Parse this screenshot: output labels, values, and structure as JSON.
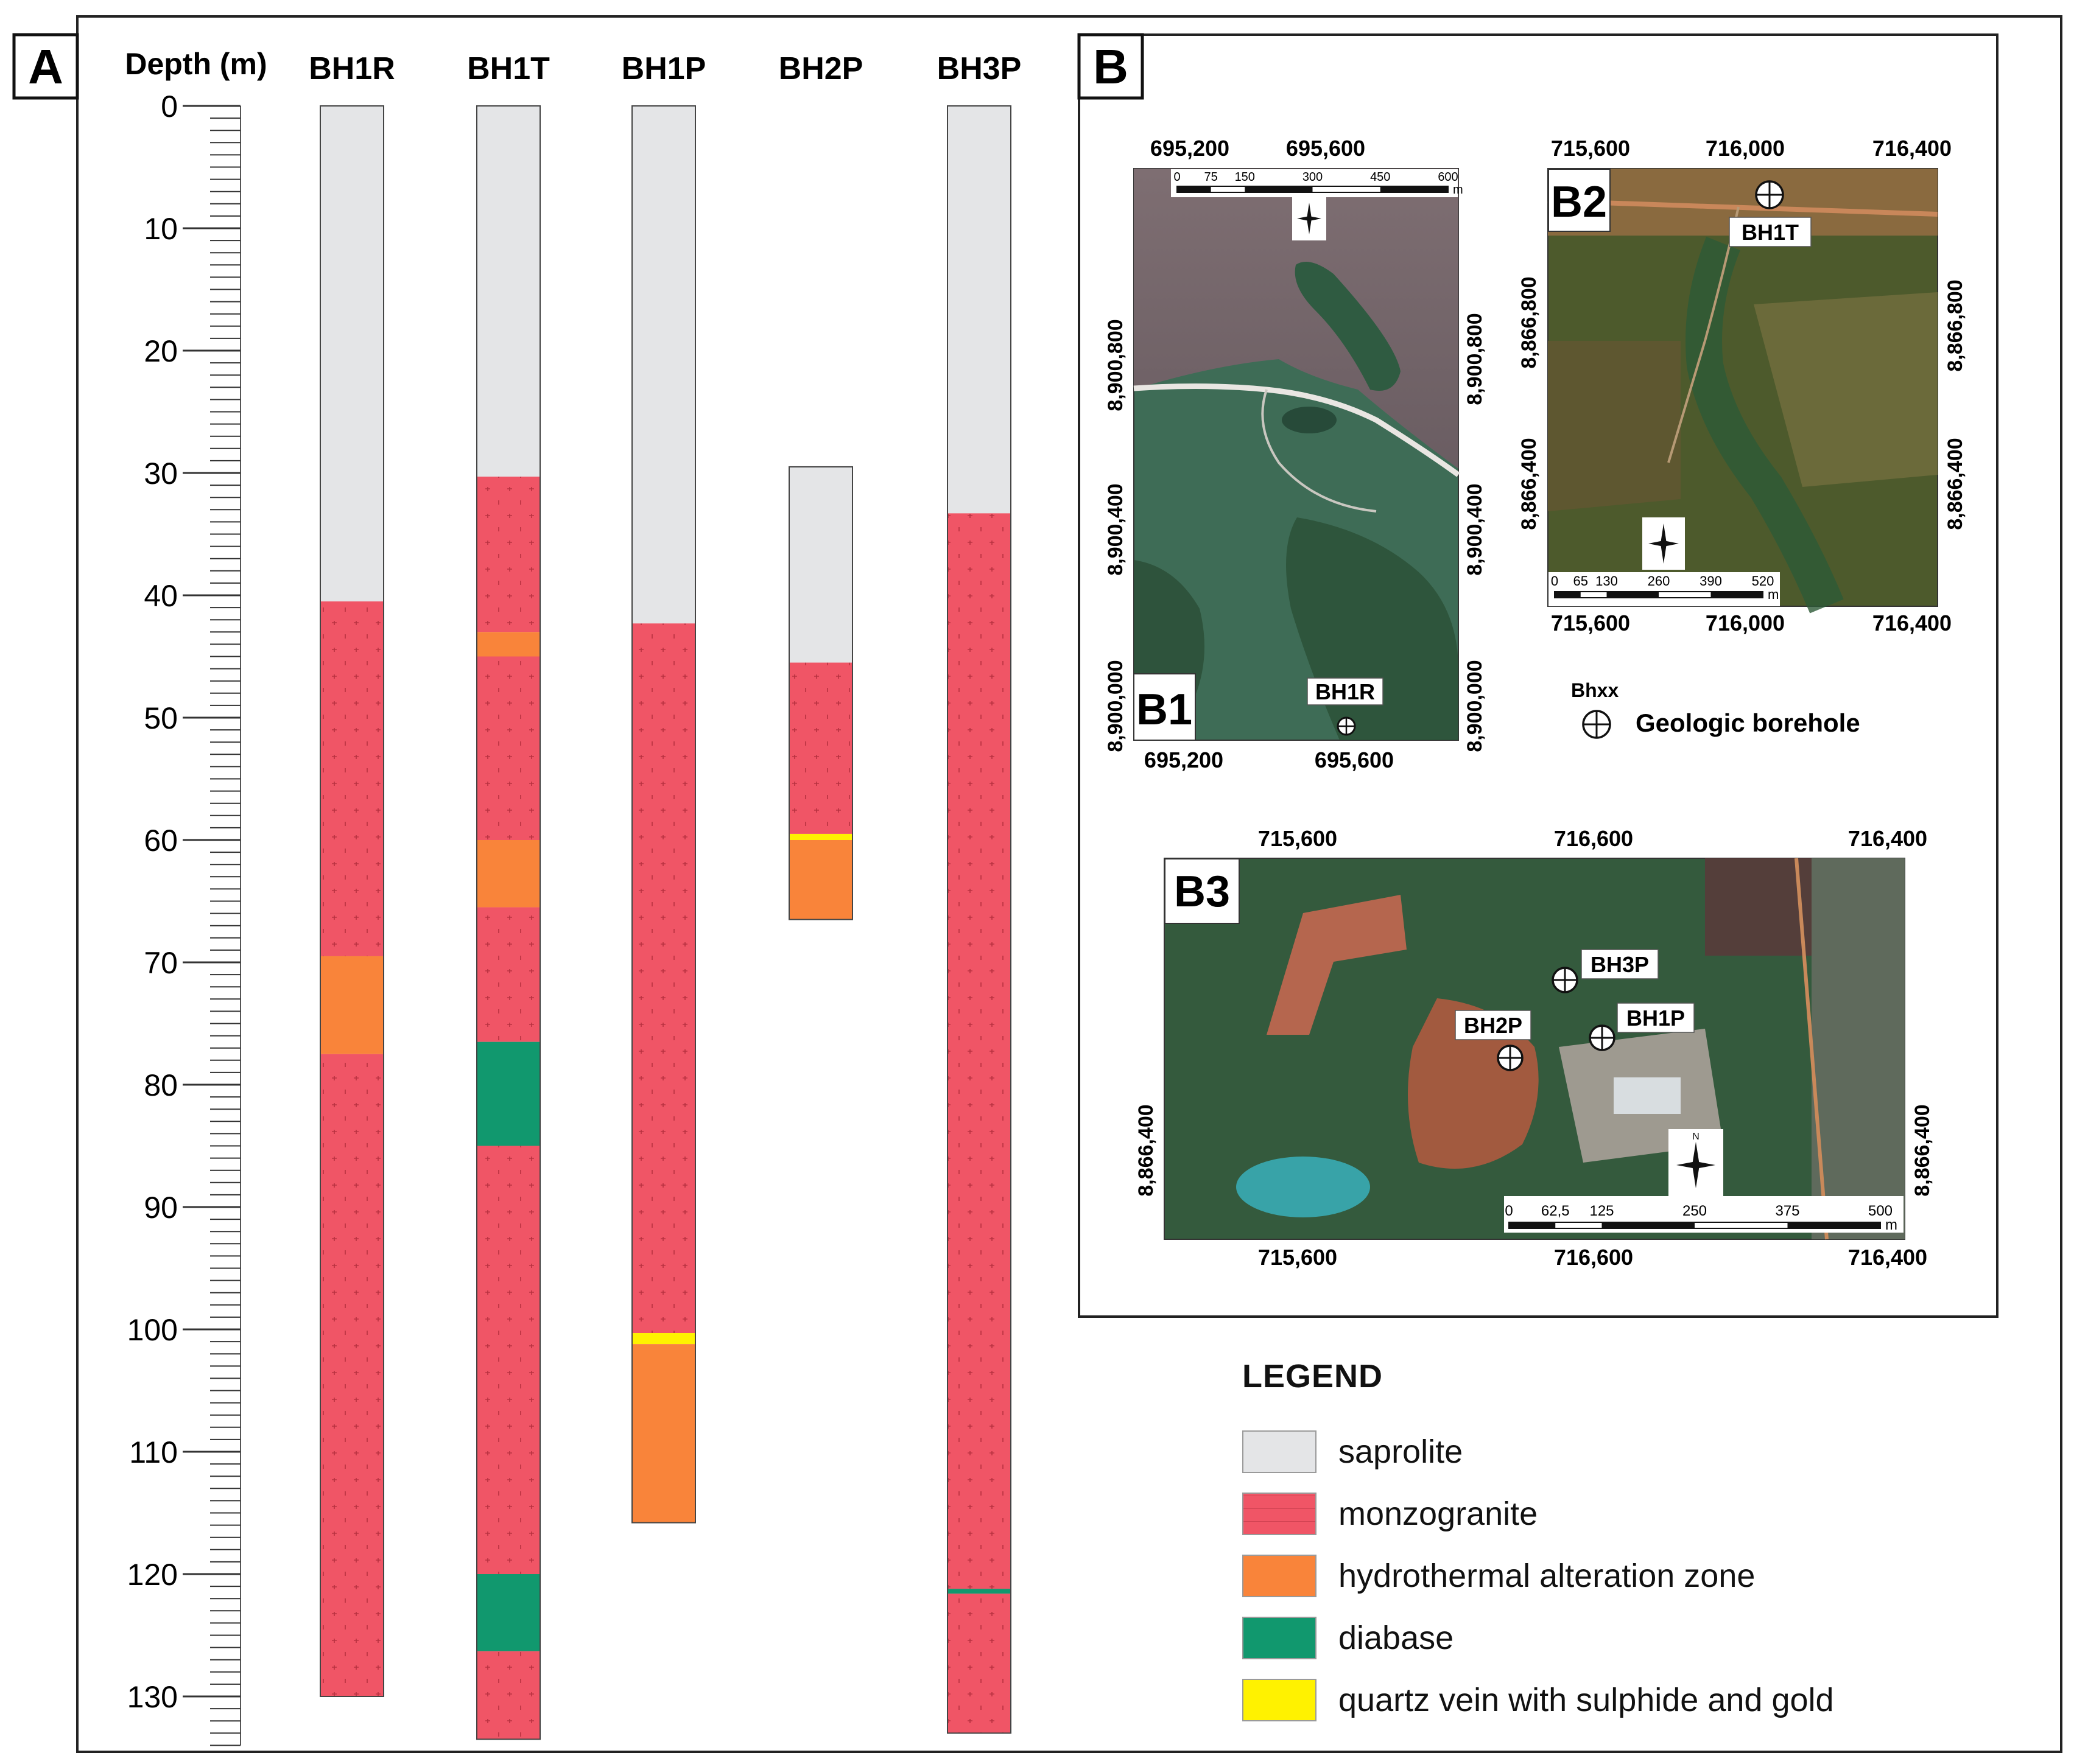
{
  "panel_a": {
    "label": "A",
    "depth_header": "Depth (m)",
    "depth_ticks": [
      "0",
      "10",
      "20",
      "30",
      "40",
      "50",
      "60",
      "70",
      "80",
      "90",
      "100",
      "110",
      "120",
      "130"
    ],
    "depth_max": 134,
    "boreholes": [
      {
        "name": "BH1R",
        "segments": [
          {
            "from": 0,
            "to": 40.5,
            "unit": "saprolite"
          },
          {
            "from": 40.5,
            "to": 69.5,
            "unit": "monzogranite"
          },
          {
            "from": 69.5,
            "to": 77.5,
            "unit": "hydrothermal"
          },
          {
            "from": 77.5,
            "to": 130,
            "unit": "monzogranite"
          }
        ]
      },
      {
        "name": "BH1T",
        "segments": [
          {
            "from": 0,
            "to": 30.3,
            "unit": "saprolite"
          },
          {
            "from": 30.3,
            "to": 43,
            "unit": "monzogranite"
          },
          {
            "from": 43,
            "to": 45,
            "unit": "hydrothermal"
          },
          {
            "from": 45,
            "to": 60,
            "unit": "monzogranite"
          },
          {
            "from": 60,
            "to": 65.5,
            "unit": "hydrothermal"
          },
          {
            "from": 65.5,
            "to": 76.5,
            "unit": "monzogranite"
          },
          {
            "from": 76.5,
            "to": 85,
            "unit": "diabase"
          },
          {
            "from": 85,
            "to": 120,
            "unit": "monzogranite"
          },
          {
            "from": 120,
            "to": 126.3,
            "unit": "diabase"
          },
          {
            "from": 126.3,
            "to": 133.5,
            "unit": "monzogranite"
          }
        ]
      },
      {
        "name": "BH1P",
        "segments": [
          {
            "from": 0,
            "to": 42.3,
            "unit": "saprolite"
          },
          {
            "from": 42.3,
            "to": 100.3,
            "unit": "monzogranite"
          },
          {
            "from": 100.3,
            "to": 101.2,
            "unit": "quartz"
          },
          {
            "from": 101.2,
            "to": 115.8,
            "unit": "hydrothermal"
          }
        ]
      },
      {
        "name": "BH2P",
        "segments": [
          {
            "from": 29.5,
            "to": 45.5,
            "unit": "saprolite"
          },
          {
            "from": 45.5,
            "to": 59.5,
            "unit": "monzogranite"
          },
          {
            "from": 59.5,
            "to": 60.0,
            "unit": "quartz"
          },
          {
            "from": 60.0,
            "to": 66.5,
            "unit": "hydrothermal"
          }
        ]
      },
      {
        "name": "BH3P",
        "segments": [
          {
            "from": 0,
            "to": 33.3,
            "unit": "saprolite"
          },
          {
            "from": 33.3,
            "to": 121.2,
            "unit": "monzogranite"
          },
          {
            "from": 121.2,
            "to": 121.6,
            "unit": "diabase"
          },
          {
            "from": 121.6,
            "to": 133,
            "unit": "monzogranite"
          }
        ]
      }
    ]
  },
  "colors": {
    "saprolite": "#e4e5e7",
    "monzogranite": "#f05566",
    "hydrothermal": "#f9843a",
    "diabase": "#11986e",
    "quartz": "#fff200"
  },
  "panel_b": {
    "label": "B",
    "b1": {
      "label": "B1",
      "top_ticks": [
        "695,200",
        "695,600"
      ],
      "bottom_ticks": [
        "695,200",
        "695,600"
      ],
      "left_ticks": [
        "8,900,800",
        "8,900,400",
        "8,900,000"
      ],
      "right_ticks": [
        "8,900,800",
        "8,900,400",
        "8,900,000"
      ],
      "scale_ticks": [
        "0",
        "75",
        "150",
        "300",
        "450",
        "600"
      ],
      "scale_unit": "m",
      "boreholes": [
        "BH1R"
      ]
    },
    "b2": {
      "label": "B2",
      "top_ticks": [
        "715,600",
        "716,000",
        "716,400"
      ],
      "bottom_ticks": [
        "715,600",
        "716,000",
        "716,400"
      ],
      "left_ticks": [
        "8,866,800",
        "8,866,400"
      ],
      "right_ticks": [
        "8,866,800",
        "8,866,400"
      ],
      "scale_ticks": [
        "0",
        "65",
        "130",
        "260",
        "390",
        "520"
      ],
      "scale_unit": "m",
      "boreholes": [
        "BH1T"
      ]
    },
    "b3": {
      "label": "B3",
      "top_ticks": [
        "715,600",
        "716,600",
        "716,400"
      ],
      "bottom_ticks": [
        "715,600",
        "716,600",
        "716,400"
      ],
      "left_ticks": [
        "8,866,400"
      ],
      "right_ticks": [
        "8,866,400"
      ],
      "scale_ticks": [
        "0",
        "62,5",
        "125",
        "250",
        "375",
        "500"
      ],
      "scale_unit": "m",
      "boreholes": [
        "BH3P",
        "BH2P",
        "BH1P"
      ]
    },
    "map_legend": {
      "code": "Bhxx",
      "label": "Geologic borehole"
    },
    "north_label": "N"
  },
  "legend": {
    "title": "LEGEND",
    "items": [
      {
        "key": "saprolite",
        "label": "saprolite"
      },
      {
        "key": "monzogranite",
        "label": "monzogranite"
      },
      {
        "key": "hydrothermal",
        "label": "hydrothermal alteration zone"
      },
      {
        "key": "diabase",
        "label": "diabase"
      },
      {
        "key": "quartz",
        "label": "quartz vein with sulphide and gold"
      }
    ]
  }
}
